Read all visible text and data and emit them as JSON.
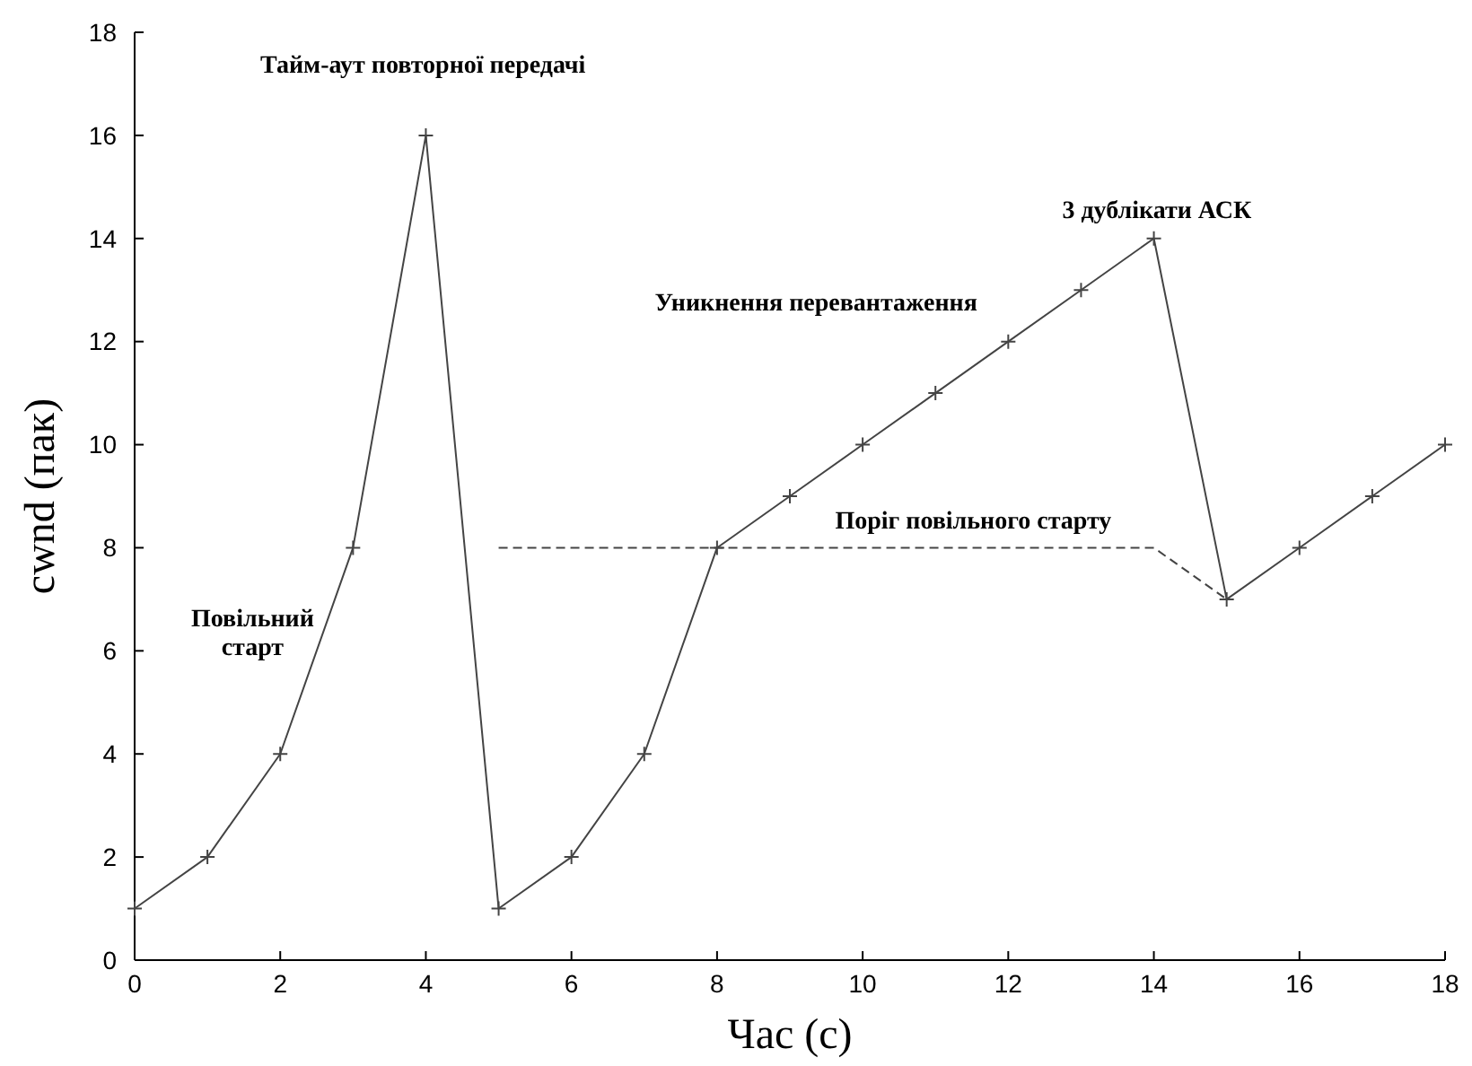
{
  "chart_data": {
    "type": "line",
    "xlabel": "Час (с)",
    "ylabel": "cwnd (пак)",
    "xlim": [
      0,
      18
    ],
    "xticks": [
      0,
      2,
      4,
      6,
      8,
      10,
      12,
      14,
      16,
      18
    ],
    "ylim": [
      0,
      18
    ],
    "yticks": [
      0,
      2,
      4,
      6,
      8,
      10,
      12,
      14,
      16,
      18
    ],
    "grid": false,
    "series": [
      {
        "color": "#444444",
        "marker": "cross",
        "line_style": "solid",
        "x": [
          0,
          1,
          2,
          3,
          4,
          5,
          6,
          7,
          8,
          9,
          10,
          11,
          12,
          13,
          14,
          15,
          16,
          17,
          18
        ],
        "values": [
          1,
          2,
          4,
          8,
          16,
          1,
          2,
          4,
          8,
          9,
          10,
          11,
          12,
          13,
          14,
          7,
          8,
          9,
          10
        ]
      },
      {
        "color": "#444444",
        "marker": "none",
        "line_style": "dashed",
        "x": [
          5,
          14,
          15
        ],
        "values": [
          8,
          8,
          7
        ]
      }
    ],
    "annotations": [
      "Тайм-аут повторної передачі",
      "3 дублікати АСК",
      "Уникнення перевантаження",
      "Поріг повільного старту",
      "Повільний\nстарт"
    ]
  }
}
